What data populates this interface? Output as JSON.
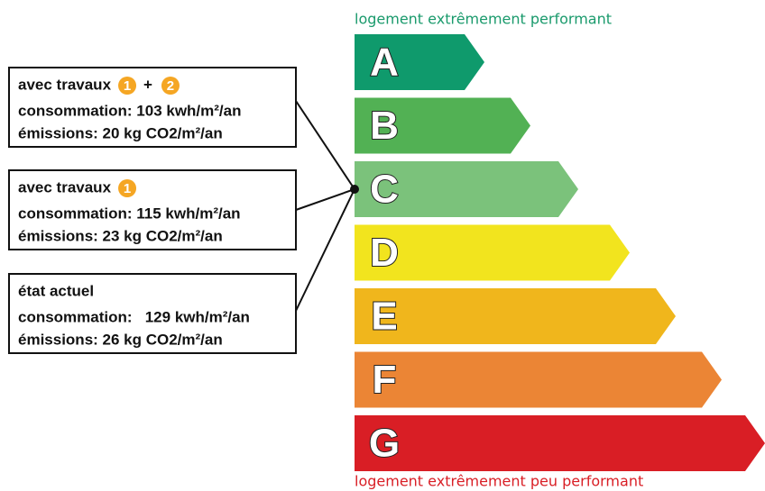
{
  "top_label": "logement extrêmement performant",
  "bottom_label": "logement extrêmement peu performant",
  "grades": [
    {
      "letter": "A",
      "color": "#0f9a6c"
    },
    {
      "letter": "B",
      "color": "#52b154"
    },
    {
      "letter": "C",
      "color": "#7bc27b"
    },
    {
      "letter": "D",
      "color": "#f2e41e"
    },
    {
      "letter": "E",
      "color": "#f0b61c"
    },
    {
      "letter": "F",
      "color": "#eb8535"
    },
    {
      "letter": "G",
      "color": "#d91e25"
    }
  ],
  "boxes": [
    {
      "title": "avec travaux",
      "badges": [
        "1",
        "+",
        "2"
      ],
      "consumption": "consommation: 103 kwh/m²/an",
      "emissions": "émissions: 20 kg CO2/m²/an"
    },
    {
      "title": "avec travaux",
      "badges": [
        "1"
      ],
      "consumption": "consommation: 115 kwh/m²/an",
      "emissions": "émissions: 23 kg CO2/m²/an"
    },
    {
      "title": "état actuel",
      "badges": [],
      "consumption": "consommation:   129 kwh/m²/an",
      "emissions": "émissions: 26 kg CO2/m²/an"
    }
  ]
}
